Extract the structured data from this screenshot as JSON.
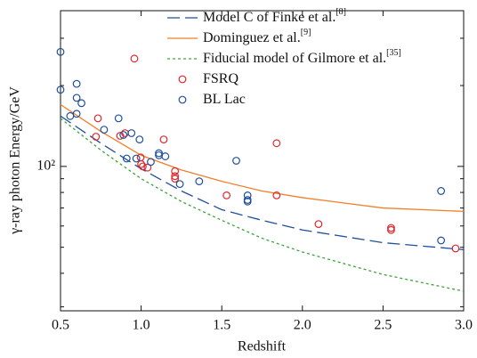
{
  "chart_data": {
    "type": "scatter",
    "xlabel": "Redshift",
    "ylabel": "γ-ray photon Energy/GeV",
    "xlim": [
      0.5,
      3.0
    ],
    "xticks": [
      0.5,
      {
        "value": 1,
        "label": "1.0"
      },
      1.5,
      {
        "value": 2,
        "label": "2.0"
      },
      2.5,
      {
        "value": 3,
        "label": "3.0"
      }
    ],
    "ylim": [
      29,
      380
    ],
    "log_y": true,
    "yticks": [
      {
        "value": 100,
        "label": "10²"
      }
    ],
    "yminorticks": [
      30,
      40,
      50,
      60,
      70,
      80,
      90,
      200,
      300
    ],
    "series": [
      {
        "name": "Model C of Finke et al.",
        "superscript": "[8]",
        "type": "line",
        "dash": "dashed",
        "color": "#1f4e9c",
        "x": [
          0.5,
          0.75,
          1.0,
          1.25,
          1.5,
          1.75,
          2.0,
          2.5,
          3.0
        ],
        "values": [
          154,
          122,
          98,
          81,
          69,
          63,
          58,
          52,
          49
        ]
      },
      {
        "name": "Dominguez et al.",
        "superscript": "[9]",
        "type": "line",
        "dash": "solid",
        "color": "#f07f2a",
        "x": [
          0.5,
          0.75,
          1.0,
          1.25,
          1.5,
          1.75,
          2.0,
          2.5,
          3.0
        ],
        "values": [
          170,
          135,
          110,
          97,
          88,
          81,
          76.5,
          70,
          68
        ]
      },
      {
        "name": "Fiducial model of Gilmore et al.",
        "superscript": "[35]",
        "type": "line",
        "dash": "dotted",
        "color": "#3aa33a",
        "x": [
          0.5,
          0.75,
          1.0,
          1.25,
          1.5,
          1.75,
          2.0,
          2.5,
          3.0
        ],
        "values": [
          151,
          115,
          90,
          74,
          63,
          54,
          48,
          39.6,
          34.3
        ]
      },
      {
        "name": "FSRQ",
        "type": "scatter",
        "color": "#e0262b",
        "x": [
          0.958,
          0.732,
          0.72,
          0.87,
          0.9,
          1.14,
          0.997,
          1.0,
          1.01,
          1.04,
          1.21,
          1.21,
          1.21,
          1.53,
          1.84,
          1.84,
          2.1,
          2.55,
          2.55,
          2.95
        ],
        "values": [
          252,
          151,
          129,
          130,
          133,
          126,
          108,
          102,
          100,
          99,
          96,
          92,
          90,
          78,
          122,
          78,
          61,
          59,
          58,
          49.5
        ]
      },
      {
        "name": "BL Lac",
        "type": "scatter",
        "color": "#1f4e9c",
        "x": [
          0.5,
          0.5,
          0.56,
          0.6,
          0.6,
          0.63,
          0.6,
          0.77,
          0.86,
          0.89,
          0.94,
          0.99,
          0.91,
          0.97,
          1.06,
          1.11,
          1.11,
          1.15,
          1.24,
          1.36,
          1.59,
          1.66,
          1.66,
          1.66,
          2.86,
          2.86
        ],
        "values": [
          267,
          193,
          154,
          203,
          180,
          172,
          157,
          137,
          151,
          131,
          133,
          126,
          107,
          107,
          104,
          112,
          110,
          109,
          86,
          88,
          105,
          78,
          75,
          74,
          81,
          53
        ]
      }
    ]
  }
}
